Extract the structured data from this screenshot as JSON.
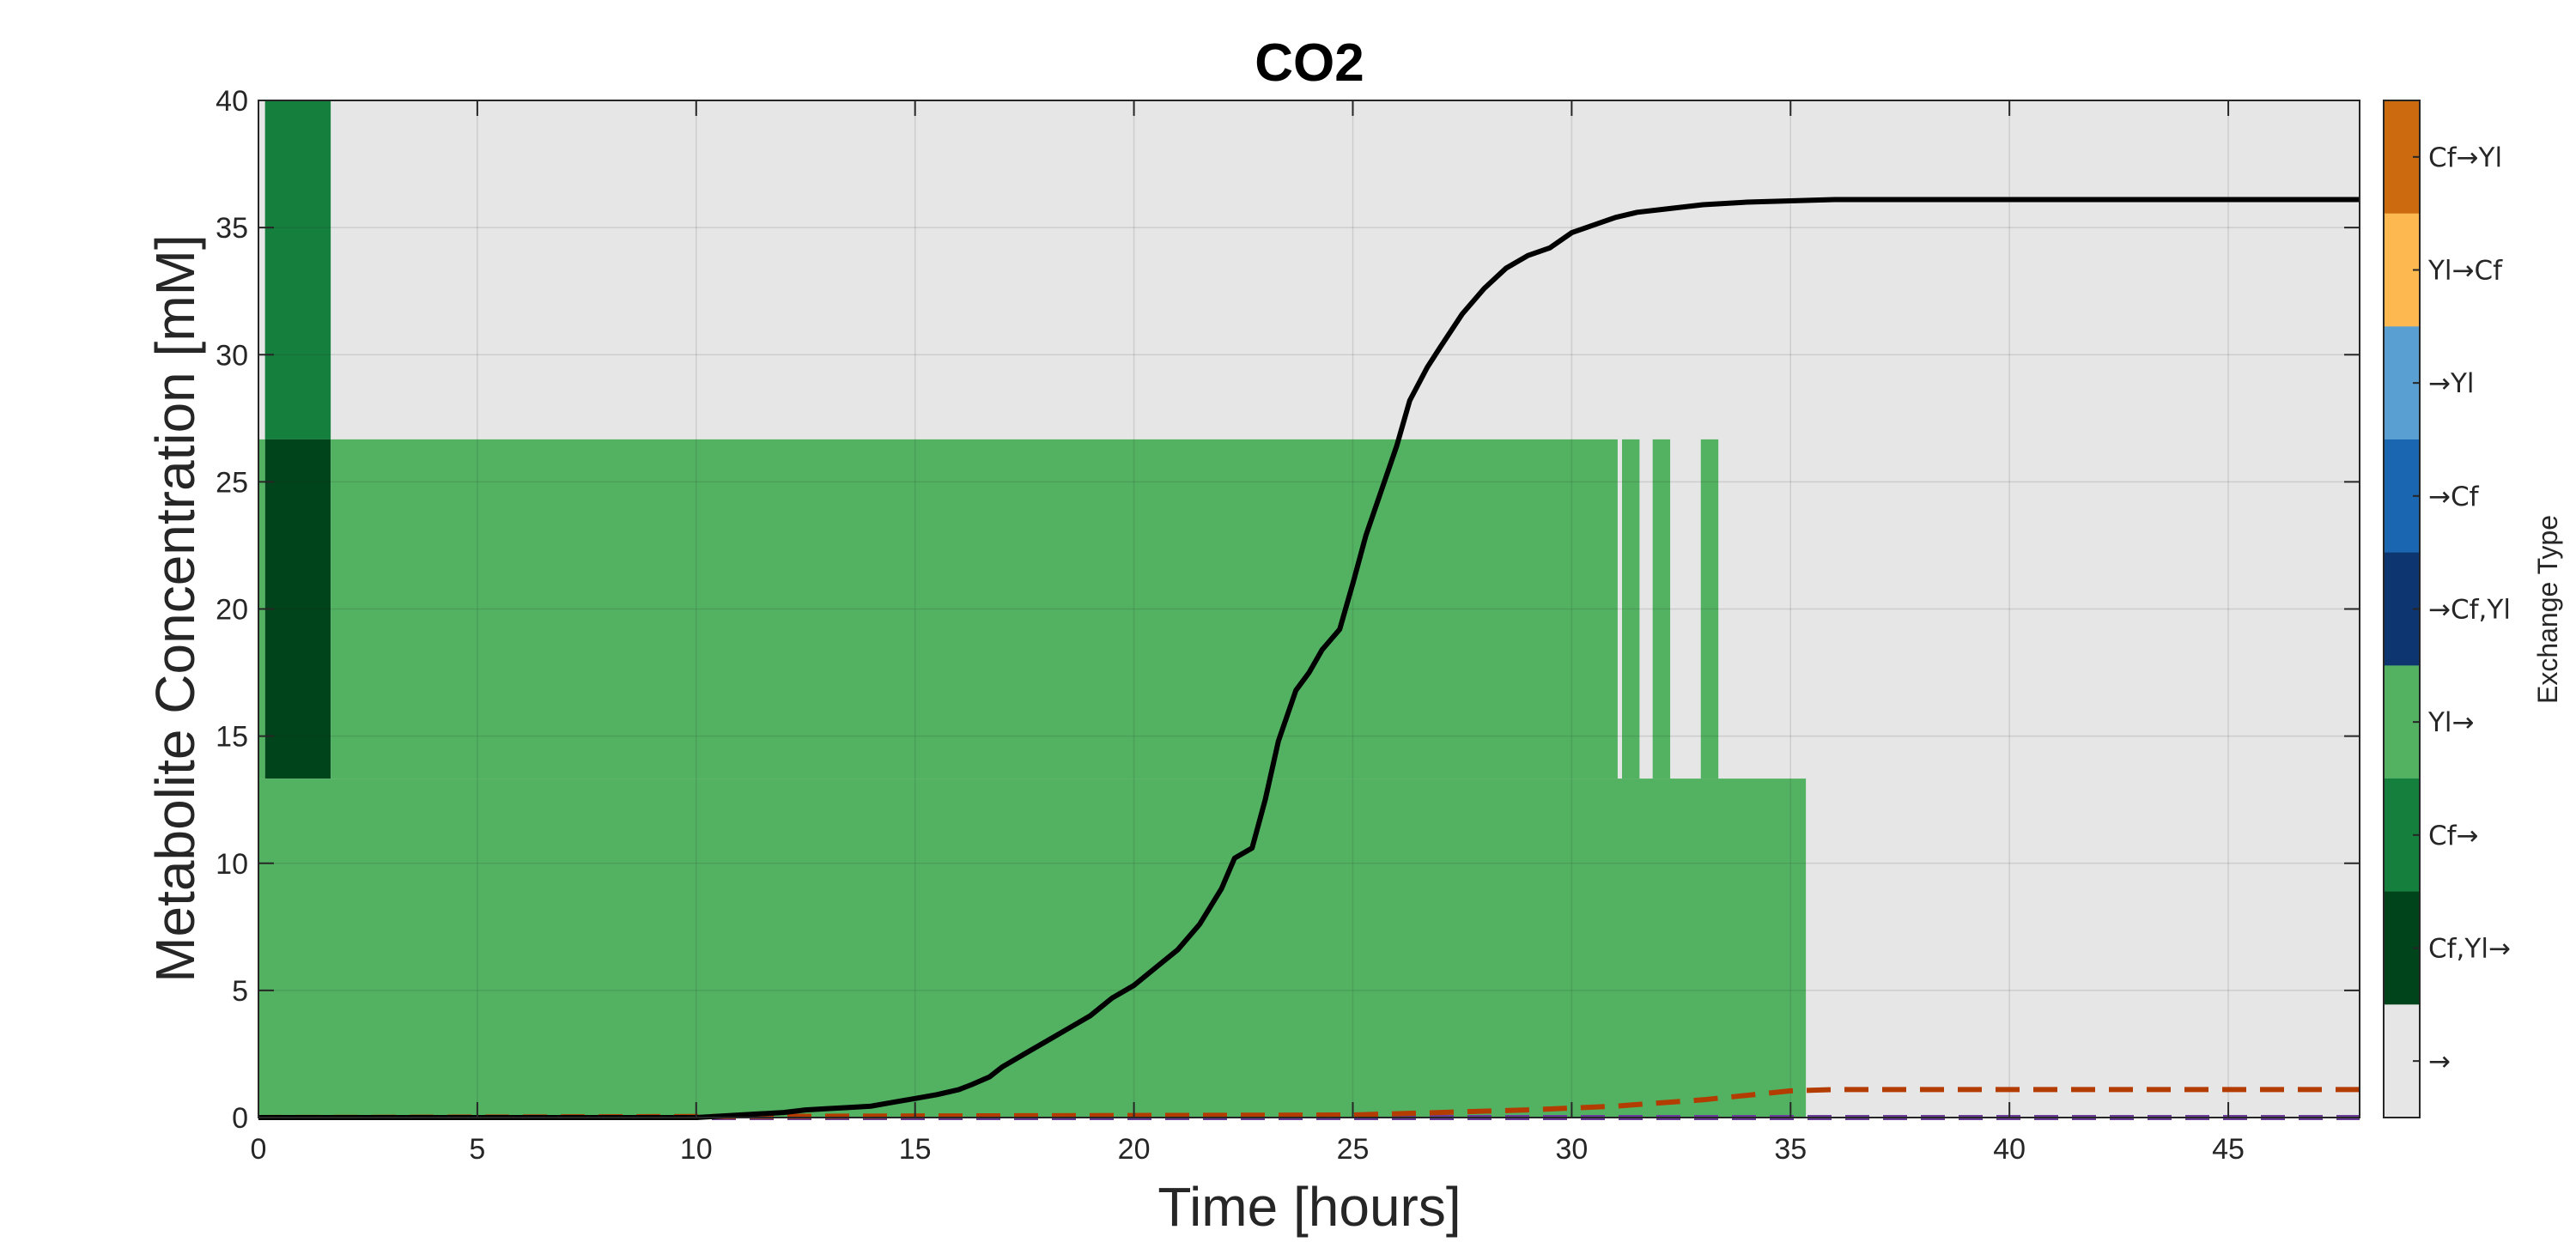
{
  "chart_data": {
    "type": "line",
    "title": "CO2",
    "xlabel": "Time [hours]",
    "ylabel": "Metabolite Concentration [mM]",
    "xlim": [
      0,
      48
    ],
    "ylim": [
      0,
      40
    ],
    "xticks": [
      0,
      5,
      10,
      15,
      20,
      25,
      30,
      35,
      40,
      45
    ],
    "yticks": [
      0,
      5,
      10,
      15,
      20,
      25,
      30,
      35,
      40
    ],
    "grid": true,
    "background_color": "#e6e6e6",
    "exchange_regions": [
      {
        "type": "Cf→",
        "x0": 0.15,
        "x1": 1.65,
        "y0": 26.67,
        "y1": 40,
        "color": "#157f3d"
      },
      {
        "type": "Cf,Yl→",
        "x0": 0.15,
        "x1": 1.65,
        "y0": 13.33,
        "y1": 26.67,
        "color": "#00441b"
      },
      {
        "type": "Yl→",
        "x0": 0,
        "x1": 0.15,
        "y0": 13.33,
        "y1": 26.67,
        "color": "#52b262"
      },
      {
        "type": "Yl→",
        "x0": 1.65,
        "x1": 31.05,
        "y0": 13.33,
        "y1": 26.67,
        "color": "#52b262"
      },
      {
        "type": "Yl→",
        "x0": 31.15,
        "x1": 31.55,
        "y0": 13.33,
        "y1": 26.67,
        "color": "#52b262"
      },
      {
        "type": "Yl→",
        "x0": 31.85,
        "x1": 32.25,
        "y0": 13.33,
        "y1": 26.67,
        "color": "#52b262"
      },
      {
        "type": "Yl→",
        "x0": 32.95,
        "x1": 33.35,
        "y0": 13.33,
        "y1": 26.67,
        "color": "#52b262"
      },
      {
        "type": "Yl→",
        "x0": 0,
        "x1": 35.35,
        "y0": 0,
        "y1": 13.33,
        "color": "#52b262"
      }
    ],
    "series": [
      {
        "color": "#000000",
        "style": "solid",
        "x": [
          0,
          10,
          11,
          12,
          12.5,
          13,
          13.5,
          14,
          14.5,
          15,
          15.5,
          16,
          16.3,
          16.7,
          17,
          17.5,
          18,
          18.5,
          19,
          19.5,
          20,
          20.5,
          21,
          21.5,
          22,
          22.3,
          22.7,
          23,
          23.3,
          23.7,
          24,
          24.3,
          24.7,
          25,
          25.3,
          25.7,
          26,
          26.3,
          26.7,
          27,
          27.5,
          28,
          28.5,
          29,
          29.5,
          30,
          30.5,
          31,
          31.5,
          32,
          33,
          34,
          36,
          40,
          48
        ],
        "y": [
          0,
          0,
          0.1,
          0.2,
          0.3,
          0.35,
          0.4,
          0.45,
          0.6,
          0.75,
          0.9,
          1.1,
          1.3,
          1.6,
          2.0,
          2.5,
          3.0,
          3.5,
          4.0,
          4.7,
          5.2,
          5.9,
          6.6,
          7.6,
          9.0,
          10.2,
          10.6,
          12.5,
          14.8,
          16.8,
          17.5,
          18.4,
          19.2,
          21.0,
          22.9,
          24.9,
          26.4,
          28.2,
          29.5,
          30.3,
          31.6,
          32.6,
          33.4,
          33.9,
          34.2,
          34.8,
          35.1,
          35.4,
          35.6,
          35.7,
          35.9,
          36.0,
          36.1,
          36.1,
          36.1
        ]
      },
      {
        "color": "#b33c00",
        "style": "dashed",
        "x": [
          0,
          25,
          27,
          29,
          31,
          33,
          35,
          36,
          48
        ],
        "y": [
          0,
          0.1,
          0.2,
          0.3,
          0.45,
          0.7,
          1.05,
          1.1,
          1.1
        ]
      },
      {
        "color": "#6a3d9a",
        "style": "dashed",
        "x": [
          0,
          48
        ],
        "y": [
          0,
          0
        ]
      }
    ],
    "colorbar": {
      "title": "Exchange Type",
      "entries": [
        {
          "label": "Cf→Yl",
          "color": "#cc6a10"
        },
        {
          "label": "Yl→Cf",
          "color": "#fdb94f"
        },
        {
          "label": "→Yl",
          "color": "#5a9fd2"
        },
        {
          "label": "→Cf",
          "color": "#1b66b0"
        },
        {
          "label": "→Cf,Yl",
          "color": "#0d3570"
        },
        {
          "label": "Yl→",
          "color": "#52b262"
        },
        {
          "label": "Cf→",
          "color": "#157f3d"
        },
        {
          "label": "Cf,Yl→",
          "color": "#00441b"
        },
        {
          "label": "→",
          "color": "#e6e6e6"
        }
      ]
    }
  }
}
